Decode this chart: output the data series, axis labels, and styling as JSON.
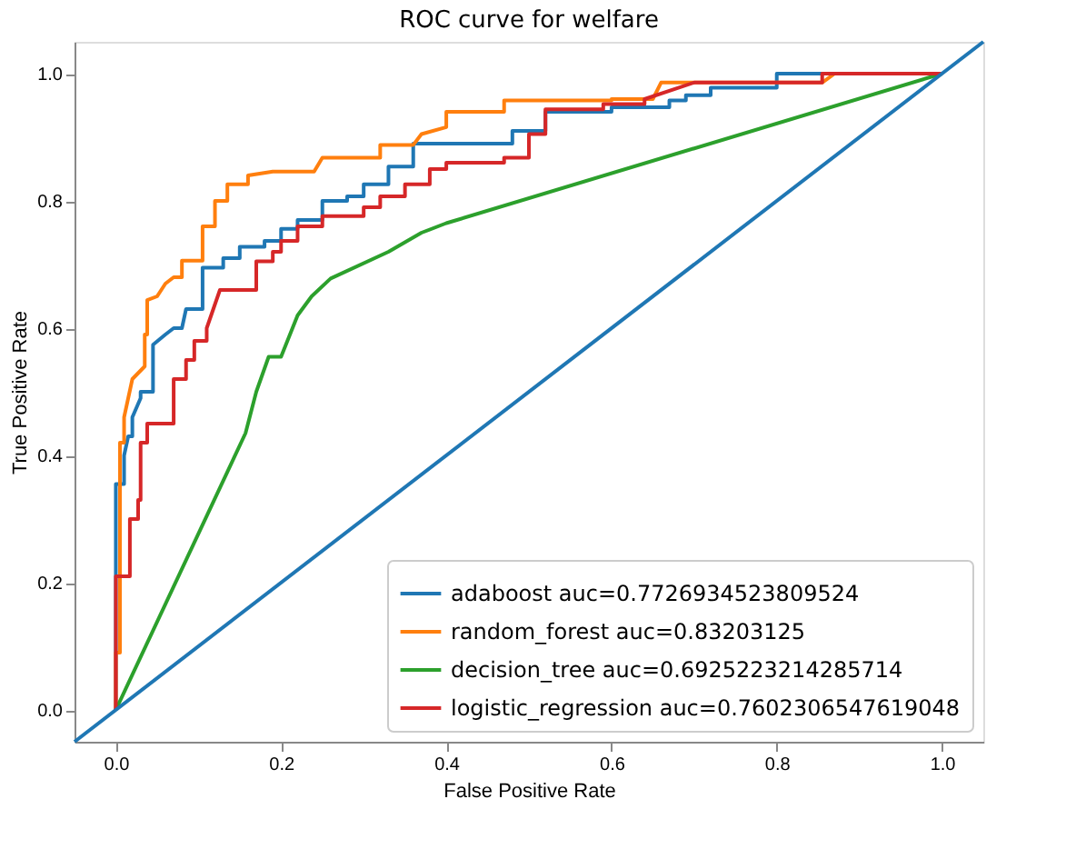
{
  "chart_data": {
    "type": "line",
    "title": "ROC curve for welfare",
    "xlabel": "False Positive Rate",
    "ylabel": "True Positive Rate",
    "xlim": [
      -0.05,
      1.05
    ],
    "ylim": [
      -0.05,
      1.05
    ],
    "xticks": [
      {
        "value": 0,
        "label": "0.0"
      },
      0.2,
      0.4,
      0.6,
      0.8,
      {
        "value": 1,
        "label": "1.0"
      }
    ],
    "yticks": [
      {
        "value": 0,
        "label": "0.0"
      },
      0.2,
      0.4,
      0.6,
      0.8,
      {
        "value": 1,
        "label": "1.0"
      }
    ],
    "grid": false,
    "legend": "bottom right",
    "series": [
      {
        "name": "adaboost auc=0.7726934523809524",
        "color": "#1f77b4",
        "x": [
          0,
          0,
          0.01,
          0.01,
          0.015,
          0.02,
          0.02,
          0.03,
          0.03,
          0.04,
          0.045,
          0.045,
          0.06,
          0.07,
          0.08,
          0.08,
          0.085,
          0.105,
          0.105,
          0.13,
          0.13,
          0.15,
          0.15,
          0.18,
          0.18,
          0.2,
          0.2,
          0.22,
          0.22,
          0.25,
          0.25,
          0.28,
          0.28,
          0.3,
          0.3,
          0.33,
          0.33,
          0.36,
          0.36,
          0.48,
          0.48,
          0.52,
          0.52,
          0.6,
          0.6,
          0.67,
          0.67,
          0.69,
          0.69,
          0.72,
          0.72,
          0.8,
          0.8,
          1.0
        ],
        "values": [
          0,
          0.355,
          0.355,
          0.4,
          0.43,
          0.43,
          0.46,
          0.49,
          0.5,
          0.5,
          0.5,
          0.574,
          0.59,
          0.6,
          0.6,
          0.6,
          0.63,
          0.63,
          0.695,
          0.695,
          0.71,
          0.71,
          0.728,
          0.728,
          0.737,
          0.737,
          0.756,
          0.756,
          0.77,
          0.77,
          0.8,
          0.8,
          0.807,
          0.807,
          0.826,
          0.826,
          0.854,
          0.854,
          0.89,
          0.89,
          0.91,
          0.91,
          0.94,
          0.94,
          0.947,
          0.947,
          0.958,
          0.958,
          0.966,
          0.966,
          0.978,
          0.978,
          1.0,
          1.0
        ]
      },
      {
        "name": "random_forest auc=0.83203125",
        "color": "#ff7f0e",
        "x": [
          0,
          0,
          0.005,
          0.005,
          0.01,
          0.01,
          0.02,
          0.035,
          0.035,
          0.038,
          0.038,
          0.05,
          0.06,
          0.07,
          0.08,
          0.08,
          0.105,
          0.105,
          0.12,
          0.12,
          0.135,
          0.135,
          0.16,
          0.16,
          0.19,
          0.24,
          0.25,
          0.32,
          0.32,
          0.36,
          0.37,
          0.4,
          0.4,
          0.47,
          0.47,
          0.5,
          0.52,
          0.6,
          0.6,
          0.65,
          0.66,
          0.855,
          0.87,
          1.0
        ],
        "values": [
          0,
          0.09,
          0.09,
          0.42,
          0.42,
          0.46,
          0.52,
          0.54,
          0.59,
          0.59,
          0.644,
          0.65,
          0.67,
          0.68,
          0.68,
          0.706,
          0.706,
          0.76,
          0.76,
          0.8,
          0.8,
          0.826,
          0.826,
          0.84,
          0.846,
          0.846,
          0.868,
          0.868,
          0.888,
          0.888,
          0.905,
          0.916,
          0.94,
          0.94,
          0.958,
          0.958,
          0.958,
          0.958,
          0.96,
          0.96,
          0.986,
          0.986,
          1.0,
          1.0
        ]
      },
      {
        "name": "decision_tree auc=0.6925223214285714",
        "color": "#2ca02c",
        "x": [
          0,
          0.157,
          0.17,
          0.185,
          0.2,
          0.22,
          0.237,
          0.26,
          0.33,
          0.37,
          0.4,
          1.0
        ],
        "values": [
          0,
          0.435,
          0.5,
          0.555,
          0.555,
          0.62,
          0.65,
          0.678,
          0.72,
          0.75,
          0.765,
          1.0
        ]
      },
      {
        "name": "logistic_regression auc=0.7602306547619048",
        "color": "#d62728",
        "x": [
          0,
          0,
          0.017,
          0.017,
          0.027,
          0.027,
          0.03,
          0.03,
          0.038,
          0.038,
          0.07,
          0.07,
          0.085,
          0.085,
          0.095,
          0.095,
          0.11,
          0.11,
          0.126,
          0.17,
          0.17,
          0.19,
          0.19,
          0.2,
          0.2,
          0.22,
          0.22,
          0.25,
          0.25,
          0.3,
          0.3,
          0.32,
          0.32,
          0.35,
          0.35,
          0.38,
          0.38,
          0.4,
          0.4,
          0.47,
          0.47,
          0.5,
          0.5,
          0.52,
          0.52,
          0.59,
          0.59,
          0.64,
          0.64,
          0.7,
          0.855,
          0.855,
          1.0
        ],
        "values": [
          0,
          0.21,
          0.21,
          0.3,
          0.3,
          0.33,
          0.33,
          0.42,
          0.42,
          0.45,
          0.45,
          0.52,
          0.52,
          0.55,
          0.55,
          0.58,
          0.58,
          0.6,
          0.66,
          0.66,
          0.705,
          0.705,
          0.72,
          0.72,
          0.737,
          0.737,
          0.76,
          0.76,
          0.776,
          0.776,
          0.79,
          0.79,
          0.807,
          0.807,
          0.826,
          0.826,
          0.85,
          0.85,
          0.86,
          0.86,
          0.868,
          0.868,
          0.905,
          0.905,
          0.944,
          0.944,
          0.952,
          0.952,
          0.96,
          0.986,
          0.986,
          1.0,
          1.0
        ]
      },
      {
        "color": "#1f77b4",
        "x": [
          -0.05,
          1.05
        ],
        "values": [
          -0.05,
          1.05
        ]
      }
    ]
  }
}
